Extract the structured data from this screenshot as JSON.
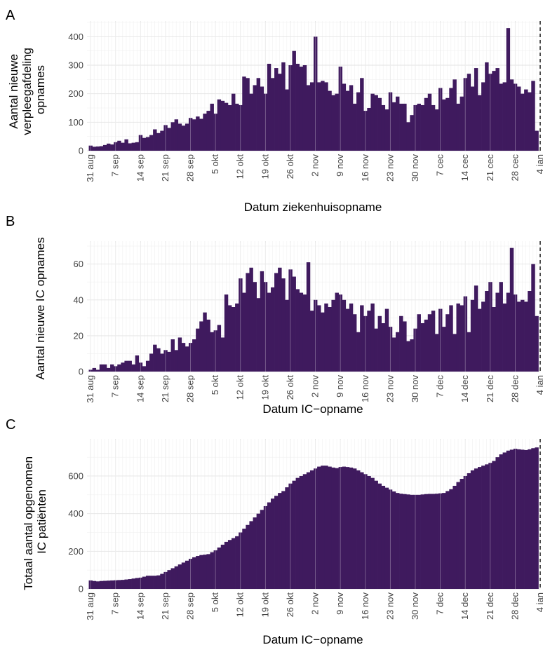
{
  "chart_data": [
    {
      "type": "bar",
      "panel": "A",
      "ylabel": [
        "Aantal nieuwe",
        "verpleegafdeling",
        "opnames"
      ],
      "xlabel": "Datum ziekenhuisopname",
      "ylim": [
        0,
        450
      ],
      "yticks": [
        0,
        100,
        200,
        300,
        400
      ],
      "x_tick_labels": [
        "31 aug",
        "7 sep",
        "14 sep",
        "21 sep",
        "28 sep",
        "5 okt",
        "12 okt",
        "19 okt",
        "26 okt",
        "2 nov",
        "9 nov",
        "16 nov",
        "23 nov",
        "30 nov",
        "7 cec",
        "14 cec",
        "21 cec",
        "28 cec",
        "4 jan"
      ],
      "start_date": "31 aug",
      "bar_color": "#3f1a5e",
      "dashed_line_label": "4 jan",
      "values": [
        18,
        14,
        15,
        16,
        20,
        25,
        22,
        30,
        35,
        28,
        40,
        26,
        28,
        30,
        55,
        45,
        48,
        55,
        75,
        62,
        70,
        90,
        80,
        100,
        110,
        95,
        88,
        95,
        115,
        110,
        120,
        112,
        130,
        140,
        165,
        130,
        180,
        175,
        168,
        160,
        200,
        165,
        160,
        260,
        255,
        200,
        230,
        255,
        225,
        200,
        305,
        255,
        290,
        270,
        310,
        215,
        300,
        350,
        305,
        295,
        300,
        230,
        240,
        400,
        240,
        245,
        240,
        210,
        195,
        200,
        295,
        235,
        210,
        230,
        165,
        205,
        255,
        140,
        150,
        200,
        195,
        185,
        160,
        145,
        205,
        170,
        190,
        165,
        165,
        100,
        125,
        160,
        165,
        160,
        185,
        200,
        160,
        145,
        220,
        180,
        185,
        220,
        250,
        165,
        190,
        255,
        270,
        225,
        290,
        195,
        240,
        310,
        270,
        280,
        290,
        235,
        240,
        430,
        250,
        235,
        225,
        200,
        215,
        205,
        245,
        70
      ]
    },
    {
      "type": "bar",
      "panel": "B",
      "ylabel": [
        "Aantal nieuwe IC opnames"
      ],
      "xlabel": "Datum IC−opname",
      "ylim": [
        0,
        72
      ],
      "yticks": [
        0,
        20,
        40,
        60
      ],
      "x_tick_labels": [
        "31 aug",
        "7 sep",
        "14 sep",
        "21 sep",
        "28 sep",
        "5 okt",
        "12 okt",
        "19 okt",
        "26 okt",
        "2 nov",
        "9 nov",
        "16 nov",
        "23 nov",
        "30 nov",
        "7 dec",
        "14 dec",
        "21 dec",
        "28 dec",
        "4 jan"
      ],
      "start_date": "31 aug",
      "bar_color": "#3f1a5e",
      "dashed_line_label": "4 jan",
      "values": [
        1,
        2,
        1,
        4,
        4,
        2,
        4,
        3,
        4,
        5,
        6,
        6,
        4,
        9,
        5,
        3,
        6,
        10,
        15,
        13,
        10,
        12,
        11,
        18,
        12,
        19,
        16,
        14,
        16,
        18,
        24,
        28,
        33,
        29,
        22,
        23,
        26,
        19,
        43,
        37,
        36,
        38,
        52,
        44,
        55,
        58,
        50,
        41,
        56,
        50,
        44,
        47,
        55,
        58,
        52,
        40,
        57,
        53,
        46,
        44,
        43,
        61,
        34,
        40,
        37,
        33,
        38,
        36,
        40,
        44,
        43,
        40,
        35,
        38,
        32,
        22,
        37,
        31,
        34,
        38,
        24,
        31,
        27,
        35,
        25,
        19,
        22,
        31,
        28,
        17,
        18,
        24,
        32,
        27,
        29,
        32,
        34,
        21,
        35,
        25,
        32,
        37,
        21,
        38,
        37,
        42,
        22,
        40,
        48,
        35,
        39,
        45,
        50,
        36,
        44,
        50,
        38,
        44,
        69,
        43,
        39,
        40,
        39,
        45,
        60,
        31
      ]
    },
    {
      "type": "area",
      "panel": "C",
      "ylabel": [
        "Totaal aantal opgenomen",
        "IC patiënten"
      ],
      "xlabel": "Datum IC−opname",
      "ylim": [
        0,
        790
      ],
      "yticks": [
        0,
        200,
        400,
        600
      ],
      "x_tick_labels": [
        "31 aug",
        "7 sep",
        "14 sep",
        "21 sep",
        "28 sep",
        "5 okt",
        "12 okt",
        "19 okt",
        "26 okt",
        "2 nov",
        "9 nov",
        "16 nov",
        "23 nov",
        "30 nov",
        "7 dec",
        "14 dec",
        "21 dec",
        "28 dec",
        "4 jan"
      ],
      "start_date": "31 aug",
      "bar_color": "#3f1a5e",
      "dashed_line_label": "4 jan",
      "values": [
        45,
        42,
        40,
        42,
        43,
        44,
        45,
        46,
        47,
        48,
        50,
        52,
        55,
        58,
        60,
        65,
        70,
        70,
        70,
        72,
        80,
        90,
        100,
        110,
        120,
        130,
        140,
        150,
        160,
        168,
        175,
        180,
        182,
        185,
        195,
        205,
        220,
        235,
        250,
        260,
        270,
        280,
        300,
        320,
        340,
        360,
        380,
        400,
        420,
        440,
        460,
        480,
        495,
        510,
        520,
        540,
        560,
        575,
        590,
        600,
        610,
        620,
        630,
        640,
        650,
        655,
        655,
        650,
        645,
        642,
        648,
        650,
        648,
        645,
        640,
        630,
        620,
        610,
        600,
        590,
        575,
        560,
        548,
        538,
        528,
        518,
        510,
        506,
        504,
        502,
        500,
        500,
        500,
        502,
        504,
        505,
        505,
        506,
        508,
        510,
        520,
        530,
        548,
        568,
        585,
        600,
        615,
        630,
        640,
        648,
        655,
        662,
        670,
        680,
        700,
        715,
        725,
        735,
        740,
        745,
        742,
        740,
        738,
        742,
        748,
        752
      ]
    }
  ]
}
